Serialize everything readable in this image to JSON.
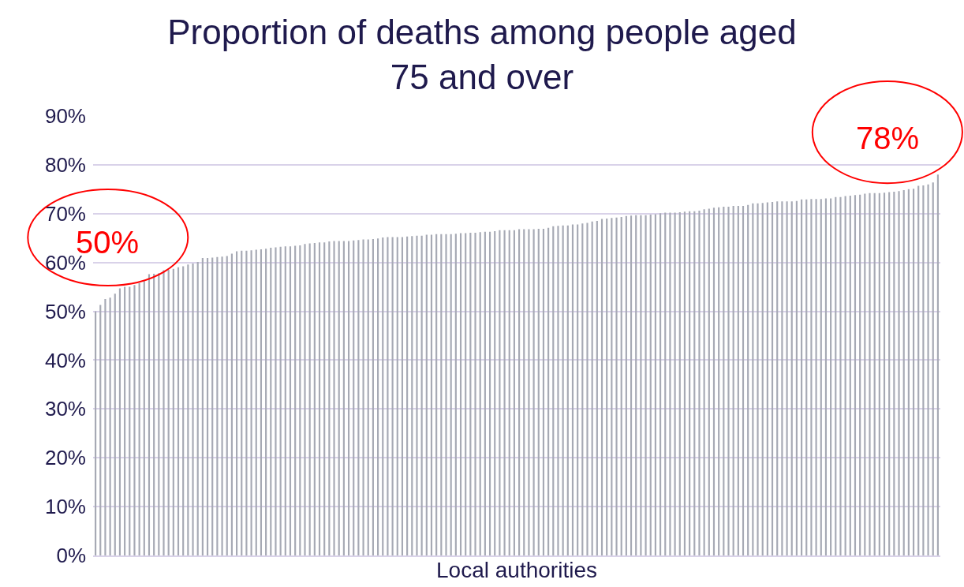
{
  "chart_data": {
    "type": "bar",
    "title": "Proportion of deaths among people aged\n75 and over",
    "xlabel": "Local authorities",
    "categories": [
      null,
      null,
      null,
      null,
      null,
      null,
      null,
      null,
      null,
      null,
      null,
      null,
      null,
      null,
      null,
      null,
      null,
      null,
      null,
      null,
      null,
      null,
      null,
      null,
      null,
      null,
      null,
      null,
      null,
      null,
      null,
      null,
      null,
      null,
      null,
      null,
      null,
      null,
      null,
      null,
      null,
      null,
      null,
      null,
      null,
      null,
      null,
      null,
      null,
      null,
      null,
      null,
      null,
      null,
      null,
      null,
      null,
      null,
      null,
      null,
      null,
      null,
      null,
      null,
      null,
      null,
      null,
      null,
      null,
      null,
      null,
      null,
      null,
      null,
      null,
      null,
      null,
      null,
      null,
      null,
      null,
      null,
      null,
      null,
      null,
      null,
      null,
      null,
      null,
      null,
      null,
      null,
      null,
      null,
      null,
      null,
      null,
      null,
      null,
      null,
      null,
      null,
      null,
      null,
      null,
      null,
      null,
      null,
      null,
      null,
      null,
      null,
      null,
      null,
      null,
      null,
      null,
      null,
      null,
      null,
      null,
      null,
      null,
      null,
      null,
      null,
      null,
      null,
      null,
      null,
      null,
      null,
      null,
      null,
      null,
      null,
      null,
      null,
      null,
      null,
      null,
      null,
      null,
      null,
      null,
      null,
      null,
      null,
      null,
      null,
      null,
      null,
      null,
      null,
      null,
      null,
      null,
      null,
      null,
      null,
      null,
      null,
      null,
      null,
      null,
      null,
      null,
      null,
      null,
      null,
      null,
      null,
      null,
      null
    ],
    "values": [
      50.0,
      51.3,
      52.5,
      52.8,
      53.6,
      54.7,
      55.0,
      55.0,
      55.4,
      55.8,
      56.2,
      57.6,
      57.7,
      57.8,
      58.4,
      58.5,
      58.7,
      59.0,
      59.2,
      59.6,
      59.8,
      60.1,
      60.9,
      60.9,
      61.0,
      61.1,
      61.2,
      61.3,
      61.8,
      62.3,
      62.4,
      62.4,
      62.5,
      62.6,
      62.7,
      62.8,
      63.0,
      63.1,
      63.2,
      63.3,
      63.3,
      63.4,
      63.5,
      63.8,
      63.9,
      64.0,
      64.1,
      64.1,
      64.3,
      64.4,
      64.4,
      64.4,
      64.4,
      64.5,
      64.6,
      64.7,
      64.7,
      64.8,
      64.9,
      65.1,
      65.2,
      65.2,
      65.2,
      65.2,
      65.3,
      65.4,
      65.5,
      65.5,
      65.7,
      65.7,
      65.8,
      65.8,
      65.8,
      65.8,
      65.9,
      66.0,
      66.0,
      66.1,
      66.1,
      66.2,
      66.3,
      66.3,
      66.4,
      66.6,
      66.6,
      66.6,
      66.6,
      66.8,
      66.8,
      66.8,
      66.8,
      66.9,
      66.9,
      67.1,
      67.4,
      67.5,
      67.6,
      67.6,
      67.8,
      67.8,
      68.0,
      68.1,
      68.4,
      68.5,
      68.9,
      69.0,
      69.1,
      69.2,
      69.3,
      69.5,
      69.6,
      69.7,
      69.7,
      69.7,
      69.8,
      69.9,
      70.1,
      70.2,
      70.2,
      70.2,
      70.3,
      70.4,
      70.5,
      70.5,
      70.6,
      70.9,
      71.0,
      71.2,
      71.3,
      71.4,
      71.4,
      71.6,
      71.6,
      71.6,
      71.8,
      72.1,
      72.1,
      72.2,
      72.3,
      72.4,
      72.5,
      72.5,
      72.5,
      72.5,
      72.6,
      72.9,
      72.9,
      73.0,
      73.0,
      73.0,
      73.1,
      73.1,
      73.4,
      73.4,
      73.6,
      73.7,
      73.8,
      73.9,
      74.1,
      74.2,
      74.2,
      74.2,
      74.3,
      74.4,
      74.5,
      74.6,
      74.8,
      75.0,
      75.1,
      75.7,
      75.8,
      76.0,
      76.4,
      78.0
    ],
    "color": "#a6a9b4",
    "ylim": [
      0,
      90
    ],
    "yticks": [
      {
        "value": 0,
        "label": "0%"
      },
      {
        "value": 10,
        "label": "10%"
      },
      {
        "value": 20,
        "label": "20%"
      },
      {
        "value": 30,
        "label": "30%"
      },
      {
        "value": 40,
        "label": "40%"
      },
      {
        "value": 50,
        "label": "50%"
      },
      {
        "value": 60,
        "label": "60%"
      },
      {
        "value": 70,
        "label": "70%"
      },
      {
        "value": 80,
        "label": "80%"
      },
      {
        "value": 90,
        "label": "90%"
      }
    ],
    "grid": "y",
    "annotations": [
      "50%",
      "78%"
    ]
  }
}
